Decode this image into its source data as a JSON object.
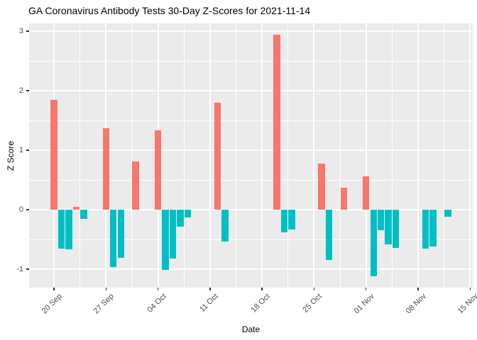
{
  "chart_data": {
    "type": "bar",
    "title": "GA Coronavirus Antibody Tests 30-Day Z-Scores for 2021-11-14",
    "xlabel": "Date",
    "ylabel": "Z Score",
    "legend": "none",
    "grid": "on",
    "panel_background": "#EBEBEB",
    "grid_color": "#FFFFFF",
    "axis_text_color": "#4D4D4D",
    "tick_mark_color": "#333333",
    "bar_color_positive": "#F8766D",
    "bar_color_negative": "#00BFC4",
    "y_ticks": [
      3,
      2,
      1,
      0,
      -1
    ],
    "y_minor_ticks": [
      2.5,
      1.5,
      0.5,
      -0.5
    ],
    "ylim": [
      -1.31,
      3.13
    ],
    "x_axis_start_date": "2021-09-20",
    "x_tick_interval_days": 7,
    "x_tick_labels": [
      "20 Sep",
      "27 Sep",
      "04 Oct",
      "11 Oct",
      "18 Oct",
      "25 Oct",
      "01 Nov",
      "08 Nov",
      "15 Nov"
    ],
    "series": [
      {
        "name": "z_score",
        "points": [
          {
            "date": "2021-09-20",
            "value": 1.84
          },
          {
            "date": "2021-09-21",
            "value": -0.65
          },
          {
            "date": "2021-09-22",
            "value": -0.67
          },
          {
            "date": "2021-09-23",
            "value": 0.05
          },
          {
            "date": "2021-09-24",
            "value": -0.16
          },
          {
            "date": "2021-09-27",
            "value": 1.37
          },
          {
            "date": "2021-09-28",
            "value": -0.97
          },
          {
            "date": "2021-09-29",
            "value": -0.81
          },
          {
            "date": "2021-10-01",
            "value": 0.81
          },
          {
            "date": "2021-10-04",
            "value": 1.33
          },
          {
            "date": "2021-10-05",
            "value": -1.01
          },
          {
            "date": "2021-10-06",
            "value": -0.82
          },
          {
            "date": "2021-10-07",
            "value": -0.28
          },
          {
            "date": "2021-10-08",
            "value": -0.13
          },
          {
            "date": "2021-10-12",
            "value": 1.8
          },
          {
            "date": "2021-10-13",
            "value": -0.54
          },
          {
            "date": "2021-10-20",
            "value": 2.94
          },
          {
            "date": "2021-10-21",
            "value": -0.38
          },
          {
            "date": "2021-10-22",
            "value": -0.33
          },
          {
            "date": "2021-10-26",
            "value": 0.77
          },
          {
            "date": "2021-10-27",
            "value": -0.85
          },
          {
            "date": "2021-10-29",
            "value": 0.37
          },
          {
            "date": "2021-11-01",
            "value": 0.56
          },
          {
            "date": "2021-11-02",
            "value": -1.12
          },
          {
            "date": "2021-11-03",
            "value": -0.35
          },
          {
            "date": "2021-11-04",
            "value": -0.58
          },
          {
            "date": "2021-11-05",
            "value": -0.64
          },
          {
            "date": "2021-11-09",
            "value": -0.65
          },
          {
            "date": "2021-11-10",
            "value": -0.62
          },
          {
            "date": "2021-11-12",
            "value": -0.12
          }
        ]
      }
    ]
  }
}
